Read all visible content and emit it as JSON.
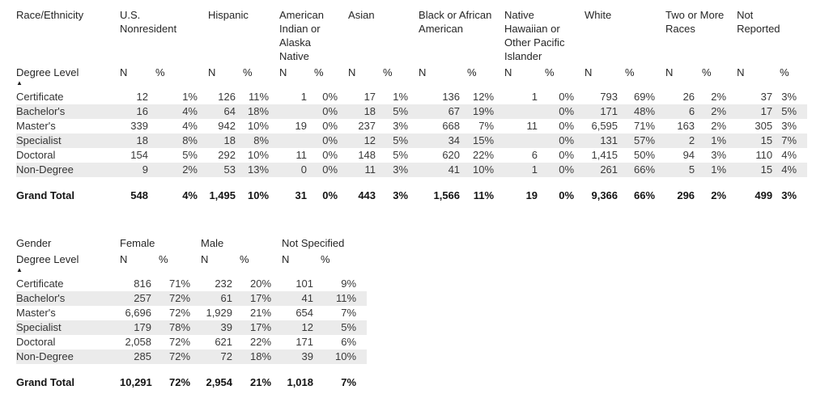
{
  "chart_data": [
    {
      "type": "table",
      "dimension_header": "Race/Ethnicity",
      "row_dimension": "Degree Level",
      "sort_indicator": "▲",
      "column_groups": [
        {
          "label": "U.S. Nonresident"
        },
        {
          "label": "Hispanic"
        },
        {
          "label": "American Indian or Alaska Native"
        },
        {
          "label": "Asian"
        },
        {
          "label": "Black or African American"
        },
        {
          "label": "Native Hawaiian or Other Pacific Islander"
        },
        {
          "label": "White"
        },
        {
          "label": "Two or More Races"
        },
        {
          "label": "Not Reported"
        }
      ],
      "sub_columns": [
        "N",
        "%"
      ],
      "rows": [
        {
          "label": "Certificate",
          "values": [
            "12",
            "1%",
            "126",
            "11%",
            "1",
            "0%",
            "17",
            "1%",
            "136",
            "12%",
            "1",
            "0%",
            "793",
            "69%",
            "26",
            "2%",
            "37",
            "3%"
          ]
        },
        {
          "label": "Bachelor's",
          "values": [
            "16",
            "4%",
            "64",
            "18%",
            "",
            "0%",
            "18",
            "5%",
            "67",
            "19%",
            "",
            "0%",
            "171",
            "48%",
            "6",
            "2%",
            "17",
            "5%"
          ]
        },
        {
          "label": "Master's",
          "values": [
            "339",
            "4%",
            "942",
            "10%",
            "19",
            "0%",
            "237",
            "3%",
            "668",
            "7%",
            "11",
            "0%",
            "6,595",
            "71%",
            "163",
            "2%",
            "305",
            "3%"
          ]
        },
        {
          "label": "Specialist",
          "values": [
            "18",
            "8%",
            "18",
            "8%",
            "",
            "0%",
            "12",
            "5%",
            "34",
            "15%",
            "",
            "0%",
            "131",
            "57%",
            "2",
            "1%",
            "15",
            "7%"
          ]
        },
        {
          "label": "Doctoral",
          "values": [
            "154",
            "5%",
            "292",
            "10%",
            "11",
            "0%",
            "148",
            "5%",
            "620",
            "22%",
            "6",
            "0%",
            "1,415",
            "50%",
            "94",
            "3%",
            "110",
            "4%"
          ]
        },
        {
          "label": "Non-Degree",
          "values": [
            "9",
            "2%",
            "53",
            "13%",
            "0",
            "0%",
            "11",
            "3%",
            "41",
            "10%",
            "1",
            "0%",
            "261",
            "66%",
            "5",
            "1%",
            "15",
            "4%"
          ]
        }
      ],
      "grand_total": {
        "label": "Grand Total",
        "values": [
          "548",
          "4%",
          "1,495",
          "10%",
          "31",
          "0%",
          "443",
          "3%",
          "1,566",
          "11%",
          "19",
          "0%",
          "9,366",
          "66%",
          "296",
          "2%",
          "499",
          "3%"
        ]
      }
    },
    {
      "type": "table",
      "dimension_header": "Gender",
      "row_dimension": "Degree Level",
      "sort_indicator": "▲",
      "column_groups": [
        {
          "label": "Female"
        },
        {
          "label": "Male"
        },
        {
          "label": "Not Specified"
        }
      ],
      "sub_columns": [
        "N",
        "%"
      ],
      "rows": [
        {
          "label": "Certificate",
          "values": [
            "816",
            "71%",
            "232",
            "20%",
            "101",
            "9%"
          ]
        },
        {
          "label": "Bachelor's",
          "values": [
            "257",
            "72%",
            "61",
            "17%",
            "41",
            "11%"
          ]
        },
        {
          "label": "Master's",
          "values": [
            "6,696",
            "72%",
            "1,929",
            "21%",
            "654",
            "7%"
          ]
        },
        {
          "label": "Specialist",
          "values": [
            "179",
            "78%",
            "39",
            "17%",
            "12",
            "5%"
          ]
        },
        {
          "label": "Doctoral",
          "values": [
            "2,058",
            "72%",
            "621",
            "22%",
            "171",
            "6%"
          ]
        },
        {
          "label": "Non-Degree",
          "values": [
            "285",
            "72%",
            "72",
            "18%",
            "39",
            "10%"
          ]
        }
      ],
      "grand_total": {
        "label": "Grand Total",
        "values": [
          "10,291",
          "72%",
          "2,954",
          "21%",
          "1,018",
          "7%"
        ]
      }
    }
  ],
  "colors": {
    "stripe": "#ebebeb",
    "text": "#3a3a3a",
    "heading": "#262626",
    "total": "#141414",
    "background": "#ffffff"
  }
}
